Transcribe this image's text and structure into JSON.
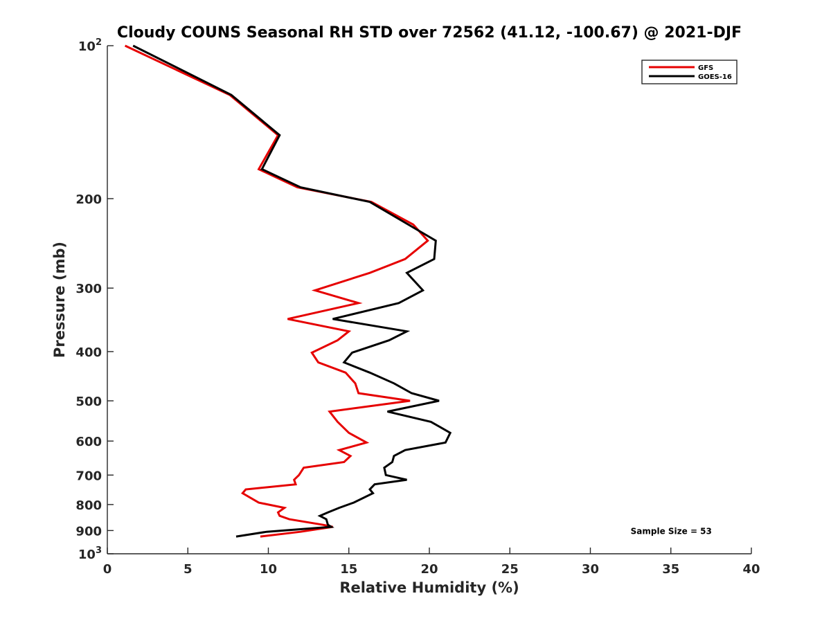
{
  "chart_data": {
    "type": "line",
    "title": "Cloudy COUNS Seasonal RH STD over 72562 (41.12, -100.67) @ 2021-DJF",
    "xlabel": "Relative Humidity (%)",
    "ylabel": "Pressure (mb)",
    "xlim": [
      0,
      40
    ],
    "ylim": [
      100,
      1000
    ],
    "yscale": "log",
    "y_reversed": true,
    "grid": false,
    "legend_position": "top-right",
    "x_ticks": [
      {
        "value": 0,
        "label": "0"
      },
      {
        "value": 5,
        "label": "5"
      },
      {
        "value": 10,
        "label": "10"
      },
      {
        "value": 15,
        "label": "15"
      },
      {
        "value": 20,
        "label": "20"
      },
      {
        "value": 25,
        "label": "25"
      },
      {
        "value": 30,
        "label": "30"
      },
      {
        "value": 35,
        "label": "35"
      },
      {
        "value": 40,
        "label": "40"
      }
    ],
    "y_ticks": [
      {
        "value": 100,
        "label": "10",
        "sup": "2"
      },
      {
        "value": 200,
        "label": "200",
        "sup": ""
      },
      {
        "value": 300,
        "label": "300",
        "sup": ""
      },
      {
        "value": 400,
        "label": "400",
        "sup": ""
      },
      {
        "value": 500,
        "label": "500",
        "sup": ""
      },
      {
        "value": 600,
        "label": "600",
        "sup": ""
      },
      {
        "value": 700,
        "label": "700",
        "sup": ""
      },
      {
        "value": 800,
        "label": "800",
        "sup": ""
      },
      {
        "value": 900,
        "label": "900",
        "sup": ""
      },
      {
        "value": 1000,
        "label": "10",
        "sup": "3"
      }
    ],
    "series": [
      {
        "name": "GFS",
        "color": "#e60000",
        "points": [
          [
            1.1,
            100
          ],
          [
            7.6,
            125
          ],
          [
            10.6,
            150
          ],
          [
            9.4,
            175
          ],
          [
            11.8,
            190
          ],
          [
            16.4,
            203
          ],
          [
            19.0,
            225
          ],
          [
            19.9,
            242
          ],
          [
            18.5,
            263
          ],
          [
            16.3,
            280
          ],
          [
            12.9,
            303
          ],
          [
            15.6,
            321
          ],
          [
            11.2,
            345
          ],
          [
            15.0,
            365
          ],
          [
            14.3,
            380
          ],
          [
            12.7,
            402
          ],
          [
            13.1,
            420
          ],
          [
            14.8,
            440
          ],
          [
            15.4,
            462
          ],
          [
            15.6,
            483
          ],
          [
            18.8,
            500
          ],
          [
            13.8,
            525
          ],
          [
            14.3,
            550
          ],
          [
            15.0,
            578
          ],
          [
            16.1,
            604
          ],
          [
            14.4,
            625
          ],
          [
            15.1,
            642
          ],
          [
            14.7,
            660
          ],
          [
            12.2,
            677
          ],
          [
            11.9,
            700
          ],
          [
            11.6,
            715
          ],
          [
            11.7,
            730
          ],
          [
            8.6,
            747
          ],
          [
            8.4,
            760
          ],
          [
            9.4,
            793
          ],
          [
            11.0,
            812
          ],
          [
            10.6,
            829
          ],
          [
            10.7,
            842
          ],
          [
            11.3,
            855
          ],
          [
            13.4,
            877
          ],
          [
            14.0,
            885
          ],
          [
            12.0,
            905
          ],
          [
            9.5,
            925
          ]
        ]
      },
      {
        "name": "GOES-16",
        "color": "#000000",
        "points": [
          [
            1.6,
            100
          ],
          [
            7.7,
            125
          ],
          [
            10.7,
            150
          ],
          [
            9.6,
            175
          ],
          [
            12.0,
            190
          ],
          [
            16.3,
            203
          ],
          [
            18.7,
            225
          ],
          [
            20.4,
            242
          ],
          [
            20.3,
            263
          ],
          [
            18.6,
            280
          ],
          [
            19.6,
            303
          ],
          [
            18.1,
            321
          ],
          [
            14.0,
            345
          ],
          [
            18.6,
            365
          ],
          [
            17.5,
            380
          ],
          [
            15.2,
            402
          ],
          [
            14.7,
            420
          ],
          [
            16.3,
            440
          ],
          [
            17.8,
            462
          ],
          [
            18.9,
            483
          ],
          [
            20.6,
            500
          ],
          [
            17.4,
            525
          ],
          [
            20.1,
            550
          ],
          [
            21.3,
            578
          ],
          [
            21.0,
            604
          ],
          [
            18.5,
            625
          ],
          [
            17.8,
            642
          ],
          [
            17.7,
            660
          ],
          [
            17.2,
            677
          ],
          [
            17.3,
            700
          ],
          [
            18.6,
            715
          ],
          [
            16.6,
            730
          ],
          [
            16.3,
            747
          ],
          [
            16.5,
            760
          ],
          [
            15.3,
            793
          ],
          [
            14.4,
            812
          ],
          [
            13.7,
            829
          ],
          [
            13.2,
            842
          ],
          [
            13.6,
            855
          ],
          [
            13.7,
            877
          ],
          [
            13.9,
            885
          ],
          [
            9.9,
            905
          ],
          [
            8.0,
            925
          ]
        ]
      }
    ],
    "annotations": [
      {
        "text": "Sample Size = 53",
        "x": 32.5,
        "y": 900
      }
    ]
  }
}
